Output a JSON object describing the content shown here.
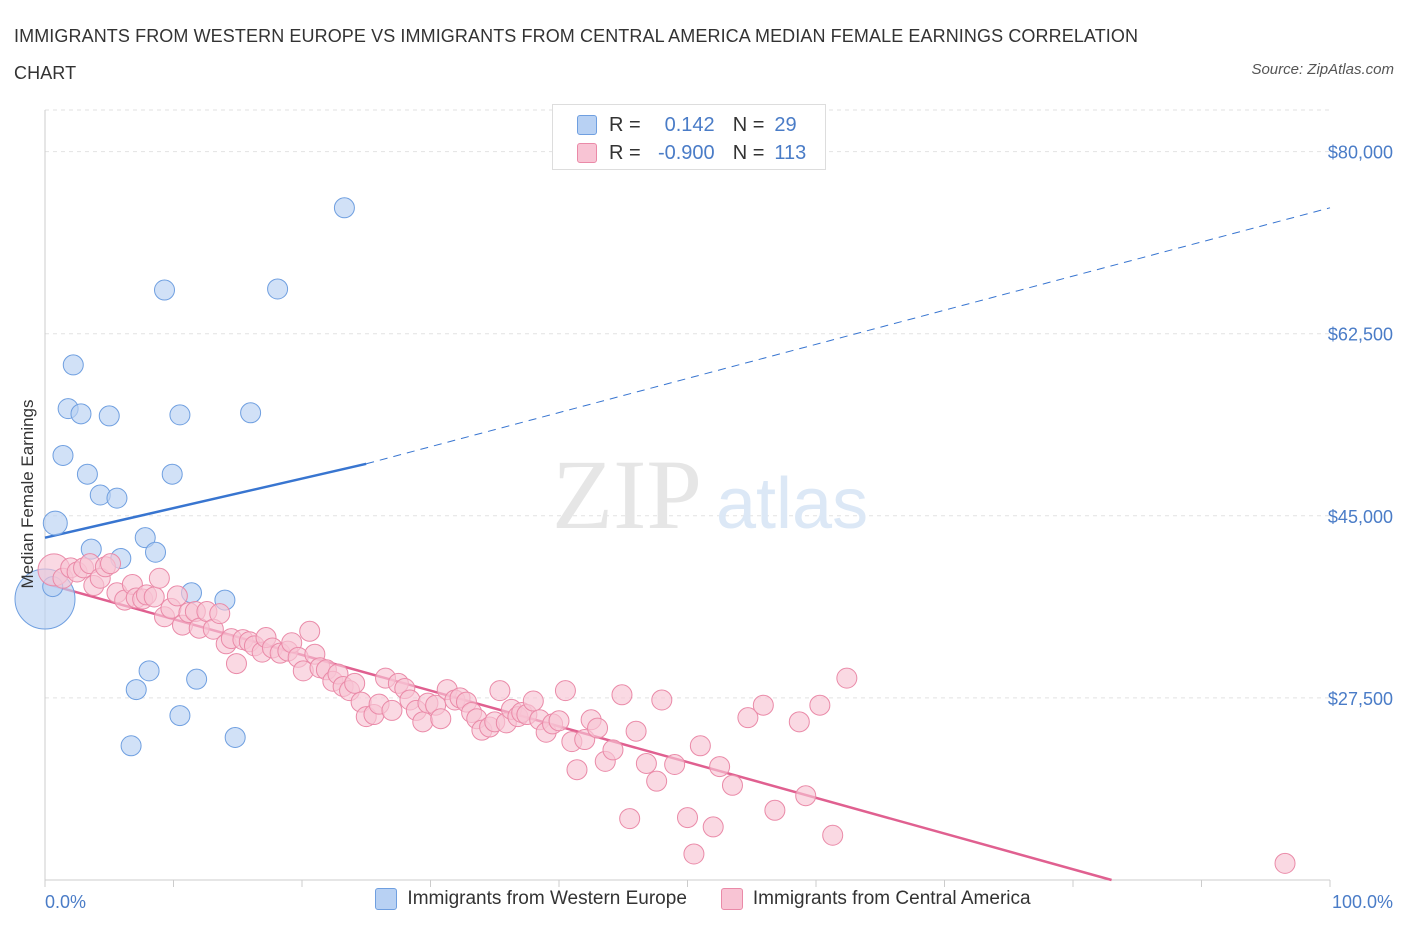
{
  "header": {
    "title": "IMMIGRANTS FROM WESTERN EUROPE VS IMMIGRANTS FROM CENTRAL AMERICA MEDIAN FEMALE EARNINGS CORRELATION CHART",
    "source": "Source: ZipAtlas.com"
  },
  "watermark": {
    "zip": "ZIP",
    "atlas": "atlas"
  },
  "legend": {
    "r_label": "R =",
    "n_label": "N =",
    "rows": [
      {
        "r": "0.142",
        "n": "29",
        "fill": "#b8d1f3",
        "stroke": "#6f9fe0"
      },
      {
        "r": "-0.900",
        "n": "113",
        "fill": "#f8c4d4",
        "stroke": "#ea8aa8"
      }
    ]
  },
  "colors": {
    "series_a_fill": "#b8d1f3",
    "series_a_stroke": "#6f9fe0",
    "series_a_line": "#3875d0",
    "series_b_fill": "#f8c4d4",
    "series_b_stroke": "#ea8aa8",
    "series_b_line": "#e06090",
    "tick_text": "#4a7cc7",
    "grid": "#e2e2e2"
  },
  "chart_data": {
    "type": "scatter",
    "title": "IMMIGRANTS FROM WESTERN EUROPE VS IMMIGRANTS FROM CENTRAL AMERICA MEDIAN FEMALE EARNINGS CORRELATION CHART",
    "xlabel": "",
    "ylabel": "Median Female Earnings",
    "xlim": [
      0,
      100
    ],
    "ylim": [
      10000,
      84000
    ],
    "x_tick_labels": [
      "0.0%",
      "100.0%"
    ],
    "y_ticks": [
      27500,
      45000,
      62500,
      80000
    ],
    "y_tick_labels": [
      "$27,500",
      "$45,000",
      "$62,500",
      "$80,000"
    ],
    "grid": true,
    "legend_position": "top-center",
    "series": [
      {
        "name": "Immigrants from Western Europe",
        "r": 0.142,
        "n": 29,
        "trend": {
          "x0": 0,
          "y0": 42900,
          "x1": 25,
          "y1": 50000,
          "extended_to_x": 100,
          "extended_y": 74600
        },
        "points": [
          [
            0,
            37000,
            30
          ],
          [
            0.8,
            44300,
            12
          ],
          [
            1.4,
            50800,
            10
          ],
          [
            1.8,
            55300,
            10
          ],
          [
            2.2,
            59500,
            10
          ],
          [
            2.8,
            54800,
            10
          ],
          [
            3.3,
            49000,
            10
          ],
          [
            3.6,
            41800,
            10
          ],
          [
            4.3,
            47000,
            10
          ],
          [
            5.0,
            54600,
            10
          ],
          [
            5.6,
            46700,
            10
          ],
          [
            5.9,
            40900,
            10
          ],
          [
            7.1,
            28300,
            10
          ],
          [
            6.7,
            22900,
            10
          ],
          [
            7.8,
            42900,
            10
          ],
          [
            8.1,
            30100,
            10
          ],
          [
            8.6,
            41500,
            10
          ],
          [
            9.3,
            66700,
            10
          ],
          [
            9.9,
            49000,
            10
          ],
          [
            10.5,
            54700,
            10
          ],
          [
            10.5,
            25800,
            10
          ],
          [
            11.4,
            37600,
            10
          ],
          [
            11.8,
            29300,
            10
          ],
          [
            14.0,
            36900,
            10
          ],
          [
            14.8,
            23700,
            10
          ],
          [
            16.0,
            54900,
            10
          ],
          [
            18.1,
            66800,
            10
          ],
          [
            23.3,
            74600,
            10
          ],
          [
            0.6,
            38200,
            10
          ]
        ]
      },
      {
        "name": "Immigrants from Central America",
        "r": -0.9,
        "n": 113,
        "trend": {
          "x0": 0,
          "y0": 38500,
          "x1": 83,
          "y1": 10000
        },
        "points": [
          [
            0.7,
            39800,
            16
          ],
          [
            1.4,
            39000,
            10
          ],
          [
            2.0,
            40000,
            10
          ],
          [
            2.5,
            39600,
            10
          ],
          [
            3.0,
            40000,
            10
          ],
          [
            3.5,
            40400,
            10
          ],
          [
            3.8,
            38300,
            10
          ],
          [
            4.3,
            39000,
            10
          ],
          [
            4.7,
            40100,
            10
          ],
          [
            5.1,
            40400,
            10
          ],
          [
            5.6,
            37600,
            10
          ],
          [
            6.2,
            36900,
            10
          ],
          [
            6.8,
            38400,
            10
          ],
          [
            7.1,
            37100,
            10
          ],
          [
            7.6,
            37000,
            10
          ],
          [
            7.9,
            37400,
            10
          ],
          [
            8.5,
            37200,
            10
          ],
          [
            8.9,
            39000,
            10
          ],
          [
            9.3,
            35300,
            10
          ],
          [
            9.8,
            36100,
            10
          ],
          [
            10.3,
            37300,
            10
          ],
          [
            10.7,
            34500,
            10
          ],
          [
            11.2,
            35700,
            10
          ],
          [
            11.7,
            35800,
            10
          ],
          [
            12.0,
            34200,
            10
          ],
          [
            12.6,
            35800,
            10
          ],
          [
            13.1,
            34100,
            10
          ],
          [
            13.6,
            35600,
            10
          ],
          [
            14.1,
            32700,
            10
          ],
          [
            14.5,
            33200,
            10
          ],
          [
            14.9,
            30800,
            10
          ],
          [
            15.4,
            33100,
            10
          ],
          [
            15.9,
            32900,
            10
          ],
          [
            16.3,
            32500,
            10
          ],
          [
            16.9,
            31900,
            10
          ],
          [
            17.2,
            33300,
            10
          ],
          [
            17.7,
            32300,
            10
          ],
          [
            18.3,
            31800,
            10
          ],
          [
            18.9,
            32000,
            10
          ],
          [
            19.2,
            32800,
            10
          ],
          [
            19.7,
            31400,
            10
          ],
          [
            20.1,
            30100,
            10
          ],
          [
            20.6,
            33900,
            10
          ],
          [
            21.0,
            31700,
            10
          ],
          [
            21.4,
            30400,
            10
          ],
          [
            21.9,
            30200,
            10
          ],
          [
            22.4,
            29100,
            10
          ],
          [
            22.8,
            29800,
            10
          ],
          [
            23.2,
            28600,
            10
          ],
          [
            23.7,
            28200,
            10
          ],
          [
            24.1,
            28900,
            10
          ],
          [
            24.6,
            27100,
            10
          ],
          [
            25.0,
            25700,
            10
          ],
          [
            25.6,
            25900,
            10
          ],
          [
            26.0,
            26900,
            10
          ],
          [
            26.5,
            29400,
            10
          ],
          [
            27.0,
            26300,
            10
          ],
          [
            27.5,
            28900,
            10
          ],
          [
            28.0,
            28400,
            10
          ],
          [
            28.4,
            27300,
            10
          ],
          [
            28.9,
            26300,
            10
          ],
          [
            29.4,
            25200,
            10
          ],
          [
            29.8,
            27000,
            10
          ],
          [
            30.4,
            26800,
            10
          ],
          [
            30.8,
            25500,
            10
          ],
          [
            31.3,
            28300,
            10
          ],
          [
            31.9,
            27300,
            10
          ],
          [
            32.3,
            27500,
            10
          ],
          [
            32.8,
            27100,
            10
          ],
          [
            33.2,
            26100,
            10
          ],
          [
            33.6,
            25500,
            10
          ],
          [
            34.0,
            24400,
            10
          ],
          [
            34.6,
            24700,
            10
          ],
          [
            35.0,
            25200,
            10
          ],
          [
            35.4,
            28200,
            10
          ],
          [
            35.9,
            25100,
            10
          ],
          [
            36.3,
            26400,
            10
          ],
          [
            36.8,
            25700,
            10
          ],
          [
            37.1,
            26100,
            10
          ],
          [
            37.5,
            25900,
            10
          ],
          [
            38.0,
            27200,
            10
          ],
          [
            38.5,
            25400,
            10
          ],
          [
            39.0,
            24200,
            10
          ],
          [
            39.5,
            25000,
            10
          ],
          [
            40.0,
            25300,
            10
          ],
          [
            40.5,
            28200,
            10
          ],
          [
            41.0,
            23300,
            10
          ],
          [
            41.4,
            20600,
            10
          ],
          [
            42.0,
            23500,
            10
          ],
          [
            42.5,
            25400,
            10
          ],
          [
            43.0,
            24600,
            10
          ],
          [
            43.6,
            21400,
            10
          ],
          [
            44.2,
            22500,
            10
          ],
          [
            44.9,
            27800,
            10
          ],
          [
            45.5,
            15900,
            10
          ],
          [
            46.0,
            24300,
            10
          ],
          [
            46.8,
            21200,
            10
          ],
          [
            47.6,
            19500,
            10
          ],
          [
            48.0,
            27300,
            10
          ],
          [
            49.0,
            21100,
            10
          ],
          [
            50.0,
            16000,
            10
          ],
          [
            50.5,
            12500,
            10
          ],
          [
            51.0,
            22900,
            10
          ],
          [
            52.0,
            15100,
            10
          ],
          [
            52.5,
            20900,
            10
          ],
          [
            53.5,
            19100,
            10
          ],
          [
            54.7,
            25600,
            10
          ],
          [
            55.9,
            26800,
            10
          ],
          [
            56.8,
            16700,
            10
          ],
          [
            58.7,
            25200,
            10
          ],
          [
            59.2,
            18100,
            10
          ],
          [
            60.3,
            26800,
            10
          ],
          [
            61.3,
            14300,
            10
          ],
          [
            62.4,
            29400,
            10
          ],
          [
            96.5,
            11600,
            10
          ]
        ]
      }
    ]
  },
  "bottom_legend": {
    "items": [
      {
        "label": "Immigrants from Western Europe"
      },
      {
        "label": "Immigrants from Central America"
      }
    ]
  }
}
